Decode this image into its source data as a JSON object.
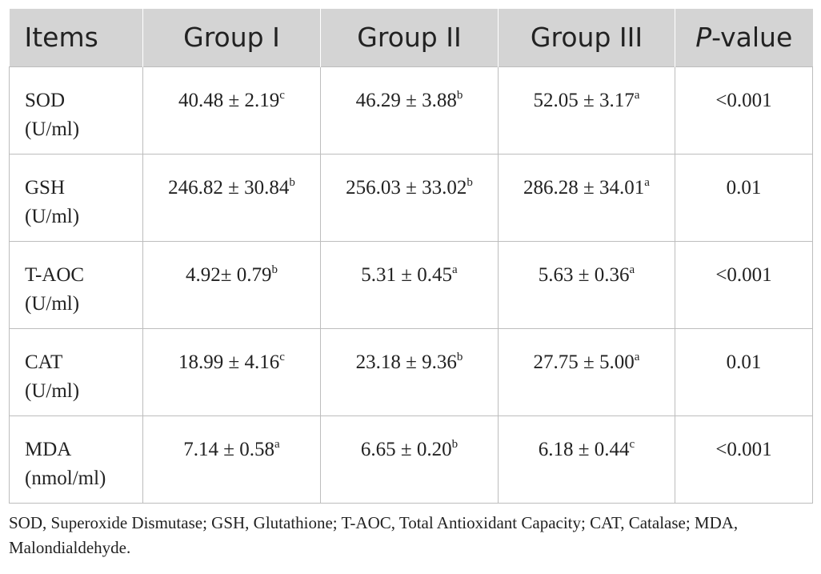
{
  "table": {
    "headers": [
      "Items",
      "Group I",
      "Group II",
      "Group III",
      "P",
      "-value"
    ],
    "rows": [
      {
        "item": "SOD",
        "unit": "(U/ml)",
        "g1": "40.48 ± 2.19",
        "g1s": "c",
        "g2": "46.29 ± 3.88",
        "g2s": "b",
        "g3": "52.05 ± 3.17",
        "g3s": "a",
        "p": "<0.001"
      },
      {
        "item": "GSH",
        "unit": "(U/ml)",
        "g1": "246.82 ± 30.84",
        "g1s": "b",
        "g2": "256.03 ± 33.02",
        "g2s": "b",
        "g3": "286.28 ± 34.01",
        "g3s": "a",
        "p": "0.01"
      },
      {
        "item": "T-AOC",
        "unit": "(U/ml)",
        "g1": "4.92± 0.79",
        "g1s": "b",
        "g2": "5.31 ± 0.45",
        "g2s": "a",
        "g3": "5.63 ± 0.36",
        "g3s": "a",
        "p": "<0.001"
      },
      {
        "item": "CAT",
        "unit": "(U/ml)",
        "g1": "18.99 ± 4.16",
        "g1s": "c",
        "g2": "23.18 ± 9.36",
        "g2s": "b",
        "g3": "27.75 ± 5.00",
        "g3s": "a",
        "p": "0.01"
      },
      {
        "item": "MDA",
        "unit": "(nmol/ml)",
        "g1": "7.14 ± 0.58",
        "g1s": "a",
        "g2": "6.65 ± 0.20",
        "g2s": "b",
        "g3": "6.18 ± 0.44",
        "g3s": "c",
        "p": "<0.001"
      }
    ]
  },
  "footnote": "SOD, Superoxide Dismutase; GSH, Glutathione; T-AOC, Total Antioxidant Capacity; CAT, Catalase; MDA, Malondialdehyde.",
  "colors": {
    "header_bg": "#d4d4d4",
    "border": "#bdbdbd",
    "text": "#222222"
  }
}
